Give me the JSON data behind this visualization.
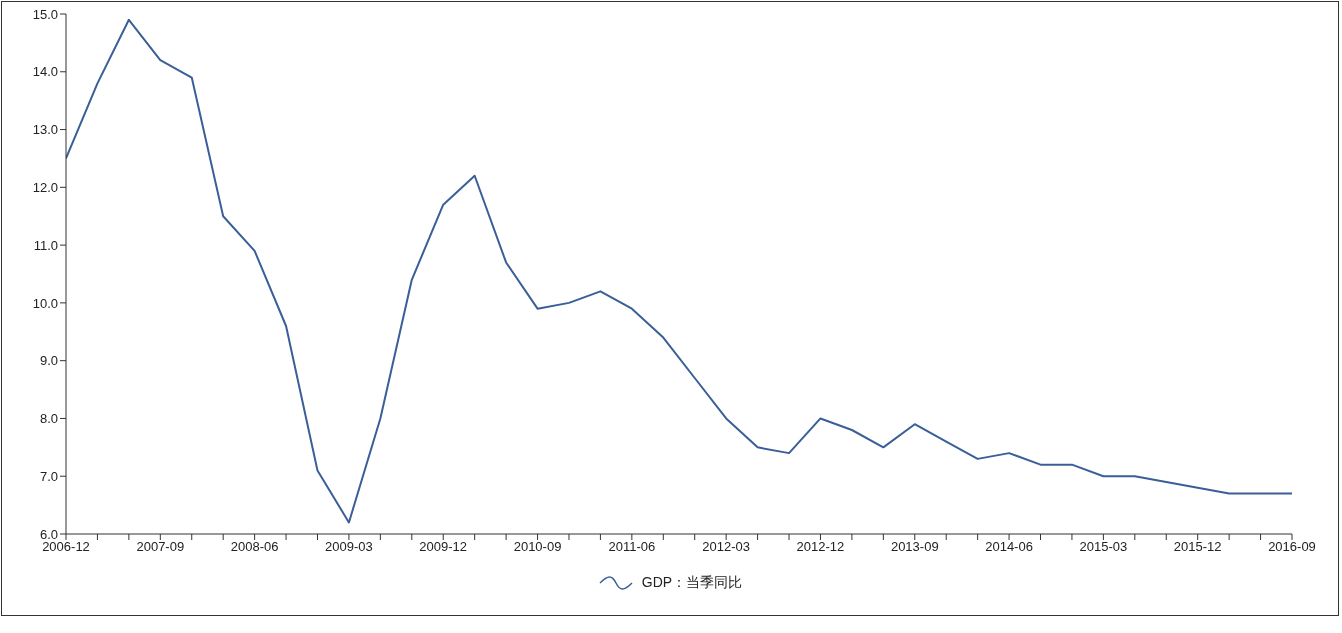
{
  "chart_data": {
    "type": "line",
    "categories": [
      "2006-12",
      null,
      null,
      "2007-09",
      null,
      null,
      "2008-06",
      null,
      null,
      "2009-03",
      null,
      null,
      "2009-12",
      null,
      null,
      "2010-09",
      null,
      null,
      "2011-06",
      null,
      null,
      "2012-03",
      null,
      null,
      "2012-12",
      null,
      null,
      "2013-09",
      null,
      null,
      "2014-06",
      null,
      null,
      "2015-03",
      null,
      null,
      "2015-12",
      null,
      null,
      "2016-09"
    ],
    "series": [
      {
        "name": "GDP：当季同比",
        "color": "#3a5f98",
        "values": [
          12.5,
          13.8,
          14.9,
          14.2,
          13.9,
          11.5,
          10.9,
          9.6,
          7.1,
          6.2,
          8.0,
          10.4,
          11.7,
          12.2,
          10.7,
          9.9,
          10.0,
          10.2,
          9.9,
          9.4,
          8.7,
          8.0,
          7.5,
          7.4,
          8.0,
          7.8,
          7.5,
          7.9,
          7.6,
          7.3,
          7.4,
          7.2,
          7.2,
          7.0,
          7.0,
          6.9,
          6.8,
          6.7,
          6.7,
          6.7
        ]
      }
    ],
    "ylim": [
      6,
      15
    ],
    "yticks": [
      {
        "value": 6,
        "label": "6.0"
      },
      {
        "value": 7,
        "label": "7.0"
      },
      {
        "value": 8,
        "label": "8.0"
      },
      {
        "value": 9,
        "label": "9.0"
      },
      {
        "value": 10,
        "label": "10.0"
      },
      {
        "value": 11,
        "label": "11.0"
      },
      {
        "value": 12,
        "label": "12.0"
      },
      {
        "value": 13,
        "label": "13.0"
      },
      {
        "value": 14,
        "label": "14.0"
      },
      {
        "value": 15,
        "label": "15.0"
      }
    ],
    "grid": false,
    "legend": "bottom",
    "marker": "none",
    "line_style": "solid"
  }
}
